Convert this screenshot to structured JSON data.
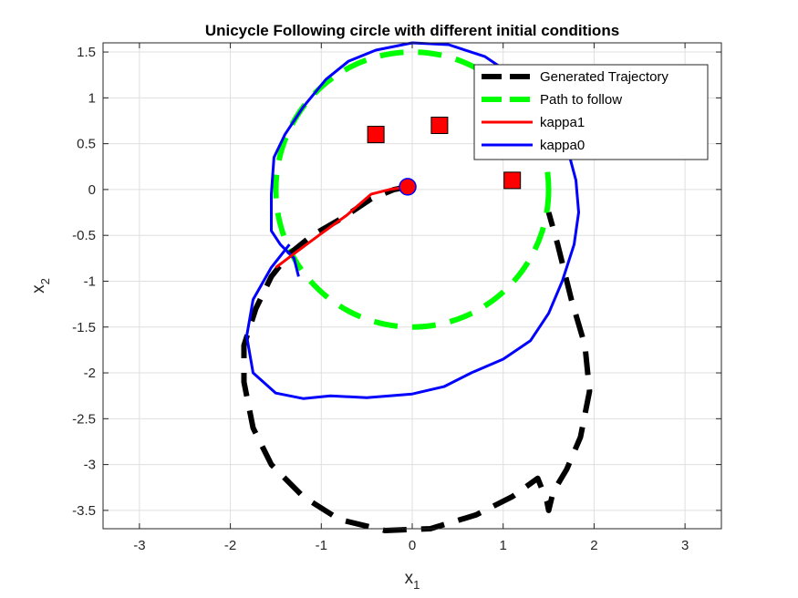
{
  "chart_data": {
    "type": "line",
    "title": "Unicycle Following circle with different initial conditions",
    "xlabel_base": "x",
    "xlabel_sub": "1",
    "ylabel_base": "x",
    "ylabel_sub": "2",
    "xlim": [
      -3.4,
      3.4
    ],
    "ylim": [
      -3.7,
      1.6
    ],
    "xticks": [
      -3,
      -2,
      -1,
      0,
      1,
      2,
      3
    ],
    "xtick_labels": [
      "-3",
      "-2",
      "-1",
      "0",
      "1",
      "2",
      "3"
    ],
    "yticks": [
      1.5,
      1,
      0.5,
      0,
      -0.5,
      -1,
      -1.5,
      -2,
      -2.5,
      -3,
      -3.5
    ],
    "ytick_labels": [
      "1.5",
      "1",
      "0.5",
      "0",
      "-0.5",
      "-1",
      "-1.5",
      "-2",
      "-2.5",
      "-3",
      "-3.5"
    ],
    "grid": true,
    "legend_position": "top-right",
    "series": [
      {
        "name": "Generated Trajectory",
        "color": "#000000",
        "style": "dashed",
        "points": [
          [
            -0.05,
            0.03
          ],
          [
            -0.2,
            0.0
          ],
          [
            -0.45,
            -0.1
          ],
          [
            -0.75,
            -0.3
          ],
          [
            -1.1,
            -0.5
          ],
          [
            -1.35,
            -0.7
          ],
          [
            -1.55,
            -0.95
          ],
          [
            -1.72,
            -1.3
          ],
          [
            -1.85,
            -1.7
          ],
          [
            -1.85,
            -2.1
          ],
          [
            -1.75,
            -2.6
          ],
          [
            -1.55,
            -3.0
          ],
          [
            -1.2,
            -3.35
          ],
          [
            -0.8,
            -3.6
          ],
          [
            -0.3,
            -3.72
          ],
          [
            0.2,
            -3.7
          ],
          [
            0.7,
            -3.55
          ],
          [
            1.1,
            -3.35
          ],
          [
            1.38,
            -3.15
          ],
          [
            1.48,
            -3.4
          ],
          [
            1.5,
            -3.5
          ],
          [
            1.55,
            -3.3
          ],
          [
            1.7,
            -3.05
          ],
          [
            1.85,
            -2.7
          ],
          [
            1.95,
            -2.2
          ],
          [
            1.9,
            -1.7
          ],
          [
            1.75,
            -1.2
          ],
          [
            1.6,
            -0.6
          ],
          [
            1.5,
            -0.25
          ]
        ]
      },
      {
        "name": "Path to follow",
        "color": "#00ff00",
        "style": "dashed",
        "circle": {
          "center": [
            0,
            0
          ],
          "radius": 1.5
        }
      },
      {
        "name": "kappa1",
        "color": "#ff0000",
        "style": "solid",
        "points": [
          [
            -1.5,
            -0.85
          ],
          [
            -1.3,
            -0.7
          ],
          [
            -1.0,
            -0.48
          ],
          [
            -0.72,
            -0.28
          ],
          [
            -0.45,
            -0.05
          ],
          [
            -0.25,
            0.0
          ],
          [
            -0.05,
            0.03
          ]
        ]
      },
      {
        "name": "kappa0",
        "color": "#0000ff",
        "style": "solid",
        "points": [
          [
            -1.25,
            -0.95
          ],
          [
            -1.3,
            -0.75
          ],
          [
            -1.45,
            -0.6
          ],
          [
            -1.55,
            -0.45
          ],
          [
            -1.55,
            -0.05
          ],
          [
            -1.52,
            0.35
          ],
          [
            -1.4,
            0.6
          ],
          [
            -1.2,
            0.9
          ],
          [
            -0.95,
            1.2
          ],
          [
            -0.7,
            1.4
          ],
          [
            -0.4,
            1.52
          ],
          [
            0.0,
            1.6
          ],
          [
            0.4,
            1.58
          ],
          [
            0.8,
            1.45
          ],
          [
            1.1,
            1.25
          ],
          [
            1.35,
            1.0
          ],
          [
            1.55,
            0.72
          ],
          [
            1.72,
            0.4
          ],
          [
            1.8,
            0.1
          ],
          [
            1.83,
            -0.25
          ],
          [
            1.78,
            -0.6
          ],
          [
            1.65,
            -1.0
          ],
          [
            1.5,
            -1.35
          ],
          [
            1.3,
            -1.65
          ],
          [
            1.0,
            -1.85
          ],
          [
            0.65,
            -2.0
          ],
          [
            0.35,
            -2.15
          ],
          [
            0.0,
            -2.23
          ],
          [
            -0.5,
            -2.27
          ],
          [
            -0.9,
            -2.25
          ],
          [
            -1.2,
            -2.28
          ],
          [
            -1.5,
            -2.22
          ],
          [
            -1.75,
            -2.0
          ],
          [
            -1.82,
            -1.6
          ],
          [
            -1.75,
            -1.2
          ],
          [
            -1.55,
            -0.85
          ],
          [
            -1.35,
            -0.6
          ]
        ]
      }
    ],
    "markers": [
      {
        "shape": "square",
        "color": "#ff0000",
        "x": -0.4,
        "y": 0.6
      },
      {
        "shape": "square",
        "color": "#ff0000",
        "x": 0.3,
        "y": 0.7
      },
      {
        "shape": "square",
        "color": "#ff0000",
        "x": 1.1,
        "y": 0.1
      },
      {
        "shape": "circle",
        "color": "#ff0000",
        "x": -0.05,
        "y": 0.03
      }
    ]
  }
}
